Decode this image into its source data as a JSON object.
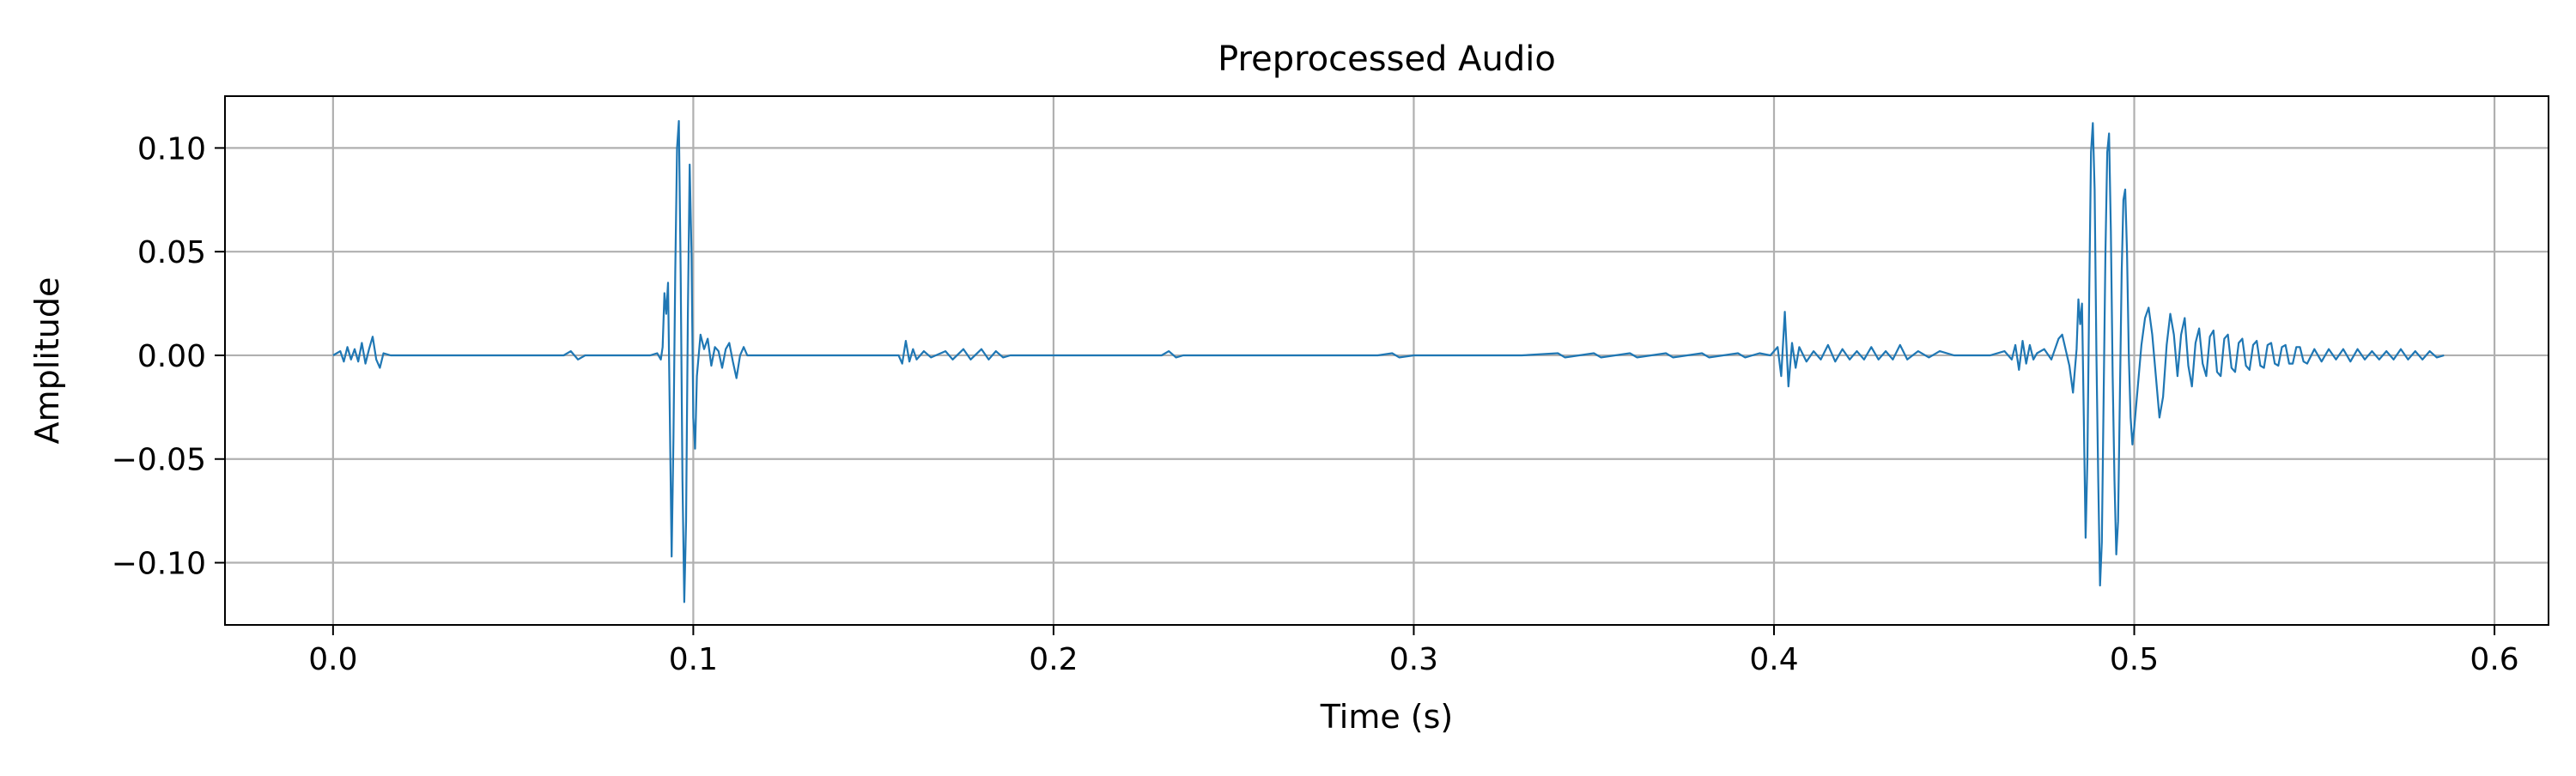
{
  "chart_data": {
    "type": "line",
    "title": "Preprocessed Audio",
    "xlabel": "Time (s)",
    "ylabel": "Amplitude",
    "xlim": [
      -0.03,
      0.615
    ],
    "ylim": [
      -0.13,
      0.125
    ],
    "x_ticks": [
      0.0,
      0.1,
      0.2,
      0.3,
      0.4,
      0.5,
      0.6
    ],
    "x_tick_labels": [
      "0.0",
      "0.1",
      "0.2",
      "0.3",
      "0.4",
      "0.5",
      "0.6"
    ],
    "y_ticks": [
      -0.1,
      -0.05,
      0.0,
      0.05,
      0.1
    ],
    "y_tick_labels": [
      "−0.10",
      "−0.05",
      "0.00",
      "0.05",
      "0.10"
    ],
    "grid": true,
    "legend": "none",
    "colors": {
      "series": "#1f77b4",
      "grid": "#b0b0b0",
      "axes": "#000000"
    },
    "series": [
      {
        "points": [
          [
            0.0,
            0.0
          ],
          [
            0.002,
            0.002
          ],
          [
            0.003,
            -0.003
          ],
          [
            0.004,
            0.004
          ],
          [
            0.005,
            -0.002
          ],
          [
            0.006,
            0.003
          ],
          [
            0.007,
            -0.003
          ],
          [
            0.008,
            0.006
          ],
          [
            0.009,
            -0.004
          ],
          [
            0.01,
            0.003
          ],
          [
            0.011,
            0.009
          ],
          [
            0.012,
            -0.002
          ],
          [
            0.013,
            -0.006
          ],
          [
            0.014,
            0.001
          ],
          [
            0.016,
            0.0
          ],
          [
            0.03,
            0.0
          ],
          [
            0.05,
            0.0
          ],
          [
            0.064,
            0.0
          ],
          [
            0.066,
            0.002
          ],
          [
            0.068,
            -0.002
          ],
          [
            0.07,
            0.0
          ],
          [
            0.08,
            0.0
          ],
          [
            0.088,
            0.0
          ],
          [
            0.09,
            0.001
          ],
          [
            0.091,
            -0.002
          ],
          [
            0.0915,
            0.004
          ],
          [
            0.092,
            0.03
          ],
          [
            0.0925,
            0.02
          ],
          [
            0.093,
            0.035
          ],
          [
            0.0935,
            -0.03
          ],
          [
            0.094,
            -0.097
          ],
          [
            0.0945,
            -0.04
          ],
          [
            0.095,
            0.04
          ],
          [
            0.0955,
            0.1
          ],
          [
            0.096,
            0.113
          ],
          [
            0.0965,
            0.04
          ],
          [
            0.097,
            -0.06
          ],
          [
            0.0975,
            -0.119
          ],
          [
            0.098,
            -0.08
          ],
          [
            0.0985,
            0.02
          ],
          [
            0.099,
            0.092
          ],
          [
            0.0995,
            0.05
          ],
          [
            0.1,
            -0.03
          ],
          [
            0.1005,
            -0.045
          ],
          [
            0.101,
            -0.01
          ],
          [
            0.102,
            0.01
          ],
          [
            0.103,
            0.003
          ],
          [
            0.104,
            0.008
          ],
          [
            0.105,
            -0.005
          ],
          [
            0.106,
            0.004
          ],
          [
            0.107,
            0.002
          ],
          [
            0.108,
            -0.006
          ],
          [
            0.109,
            0.003
          ],
          [
            0.11,
            0.006
          ],
          [
            0.111,
            -0.003
          ],
          [
            0.112,
            -0.011
          ],
          [
            0.113,
            0.0
          ],
          [
            0.114,
            0.004
          ],
          [
            0.115,
            0.0
          ],
          [
            0.116,
            0.0
          ],
          [
            0.13,
            0.0
          ],
          [
            0.15,
            0.0
          ],
          [
            0.157,
            0.0
          ],
          [
            0.158,
            -0.004
          ],
          [
            0.159,
            0.007
          ],
          [
            0.16,
            -0.003
          ],
          [
            0.161,
            0.003
          ],
          [
            0.162,
            -0.002
          ],
          [
            0.164,
            0.002
          ],
          [
            0.166,
            -0.001
          ],
          [
            0.17,
            0.002
          ],
          [
            0.172,
            -0.002
          ],
          [
            0.175,
            0.003
          ],
          [
            0.177,
            -0.002
          ],
          [
            0.18,
            0.003
          ],
          [
            0.182,
            -0.002
          ],
          [
            0.184,
            0.002
          ],
          [
            0.186,
            -0.001
          ],
          [
            0.188,
            0.0
          ],
          [
            0.2,
            0.0
          ],
          [
            0.23,
            0.0
          ],
          [
            0.232,
            0.002
          ],
          [
            0.234,
            -0.001
          ],
          [
            0.236,
            0.0
          ],
          [
            0.26,
            0.0
          ],
          [
            0.29,
            0.0
          ],
          [
            0.294,
            0.001
          ],
          [
            0.296,
            -0.001
          ],
          [
            0.3,
            0.0
          ],
          [
            0.33,
            0.0
          ],
          [
            0.34,
            0.001
          ],
          [
            0.342,
            -0.001
          ],
          [
            0.35,
            0.001
          ],
          [
            0.352,
            -0.001
          ],
          [
            0.36,
            0.001
          ],
          [
            0.362,
            -0.001
          ],
          [
            0.37,
            0.001
          ],
          [
            0.372,
            -0.001
          ],
          [
            0.38,
            0.001
          ],
          [
            0.382,
            -0.001
          ],
          [
            0.39,
            0.001
          ],
          [
            0.392,
            -0.001
          ],
          [
            0.396,
            0.001
          ],
          [
            0.399,
            0.0
          ],
          [
            0.401,
            0.004
          ],
          [
            0.402,
            -0.01
          ],
          [
            0.403,
            0.021
          ],
          [
            0.404,
            -0.015
          ],
          [
            0.405,
            0.006
          ],
          [
            0.406,
            -0.006
          ],
          [
            0.407,
            0.004
          ],
          [
            0.409,
            -0.003
          ],
          [
            0.411,
            0.002
          ],
          [
            0.413,
            -0.002
          ],
          [
            0.415,
            0.005
          ],
          [
            0.417,
            -0.003
          ],
          [
            0.419,
            0.003
          ],
          [
            0.421,
            -0.002
          ],
          [
            0.423,
            0.002
          ],
          [
            0.425,
            -0.002
          ],
          [
            0.427,
            0.004
          ],
          [
            0.429,
            -0.002
          ],
          [
            0.431,
            0.002
          ],
          [
            0.433,
            -0.002
          ],
          [
            0.435,
            0.005
          ],
          [
            0.437,
            -0.002
          ],
          [
            0.44,
            0.002
          ],
          [
            0.443,
            -0.001
          ],
          [
            0.446,
            0.002
          ],
          [
            0.45,
            0.0
          ],
          [
            0.46,
            0.0
          ],
          [
            0.464,
            0.002
          ],
          [
            0.466,
            -0.002
          ],
          [
            0.467,
            0.005
          ],
          [
            0.468,
            -0.007
          ],
          [
            0.469,
            0.007
          ],
          [
            0.47,
            -0.004
          ],
          [
            0.471,
            0.005
          ],
          [
            0.472,
            -0.002
          ],
          [
            0.473,
            0.001
          ],
          [
            0.475,
            0.003
          ],
          [
            0.477,
            -0.002
          ],
          [
            0.479,
            0.008
          ],
          [
            0.48,
            0.01
          ],
          [
            0.482,
            -0.005
          ],
          [
            0.483,
            -0.018
          ],
          [
            0.484,
            0.003
          ],
          [
            0.4845,
            0.027
          ],
          [
            0.485,
            0.015
          ],
          [
            0.4855,
            0.025
          ],
          [
            0.486,
            -0.03
          ],
          [
            0.4865,
            -0.088
          ],
          [
            0.487,
            -0.05
          ],
          [
            0.4875,
            0.03
          ],
          [
            0.488,
            0.098
          ],
          [
            0.4885,
            0.112
          ],
          [
            0.489,
            0.08
          ],
          [
            0.4895,
            0.0
          ],
          [
            0.49,
            -0.06
          ],
          [
            0.4905,
            -0.111
          ],
          [
            0.491,
            -0.09
          ],
          [
            0.4915,
            -0.02
          ],
          [
            0.492,
            0.05
          ],
          [
            0.4925,
            0.098
          ],
          [
            0.493,
            0.107
          ],
          [
            0.4935,
            0.06
          ],
          [
            0.494,
            -0.01
          ],
          [
            0.4945,
            -0.06
          ],
          [
            0.495,
            -0.096
          ],
          [
            0.4955,
            -0.08
          ],
          [
            0.496,
            -0.02
          ],
          [
            0.4965,
            0.04
          ],
          [
            0.497,
            0.075
          ],
          [
            0.4975,
            0.08
          ],
          [
            0.498,
            0.05
          ],
          [
            0.4985,
            0.0
          ],
          [
            0.499,
            -0.03
          ],
          [
            0.4995,
            -0.043
          ],
          [
            0.5,
            -0.035
          ],
          [
            0.501,
            -0.015
          ],
          [
            0.502,
            0.005
          ],
          [
            0.503,
            0.018
          ],
          [
            0.504,
            0.023
          ],
          [
            0.505,
            0.01
          ],
          [
            0.506,
            -0.01
          ],
          [
            0.507,
            -0.03
          ],
          [
            0.508,
            -0.02
          ],
          [
            0.509,
            0.005
          ],
          [
            0.51,
            0.02
          ],
          [
            0.511,
            0.01
          ],
          [
            0.512,
            -0.01
          ],
          [
            0.513,
            0.01
          ],
          [
            0.514,
            0.018
          ],
          [
            0.515,
            -0.005
          ],
          [
            0.516,
            -0.015
          ],
          [
            0.517,
            0.006
          ],
          [
            0.518,
            0.013
          ],
          [
            0.519,
            -0.004
          ],
          [
            0.52,
            -0.01
          ],
          [
            0.521,
            0.009
          ],
          [
            0.522,
            0.012
          ],
          [
            0.523,
            -0.008
          ],
          [
            0.524,
            -0.01
          ],
          [
            0.525,
            0.008
          ],
          [
            0.526,
            0.01
          ],
          [
            0.527,
            -0.006
          ],
          [
            0.528,
            -0.008
          ],
          [
            0.529,
            0.006
          ],
          [
            0.53,
            0.008
          ],
          [
            0.531,
            -0.005
          ],
          [
            0.532,
            -0.007
          ],
          [
            0.533,
            0.005
          ],
          [
            0.534,
            0.007
          ],
          [
            0.535,
            -0.005
          ],
          [
            0.536,
            -0.006
          ],
          [
            0.537,
            0.005
          ],
          [
            0.538,
            0.006
          ],
          [
            0.539,
            -0.004
          ],
          [
            0.54,
            -0.005
          ],
          [
            0.541,
            0.004
          ],
          [
            0.542,
            0.005
          ],
          [
            0.543,
            -0.004
          ],
          [
            0.544,
            -0.004
          ],
          [
            0.545,
            0.004
          ],
          [
            0.546,
            0.004
          ],
          [
            0.547,
            -0.003
          ],
          [
            0.548,
            -0.004
          ],
          [
            0.55,
            0.003
          ],
          [
            0.552,
            -0.003
          ],
          [
            0.554,
            0.003
          ],
          [
            0.556,
            -0.002
          ],
          [
            0.558,
            0.003
          ],
          [
            0.56,
            -0.003
          ],
          [
            0.562,
            0.003
          ],
          [
            0.564,
            -0.002
          ],
          [
            0.566,
            0.002
          ],
          [
            0.568,
            -0.002
          ],
          [
            0.57,
            0.002
          ],
          [
            0.572,
            -0.002
          ],
          [
            0.574,
            0.003
          ],
          [
            0.576,
            -0.002
          ],
          [
            0.578,
            0.002
          ],
          [
            0.58,
            -0.002
          ],
          [
            0.582,
            0.002
          ],
          [
            0.584,
            -0.001
          ],
          [
            0.586,
            0.0
          ]
        ]
      }
    ]
  }
}
